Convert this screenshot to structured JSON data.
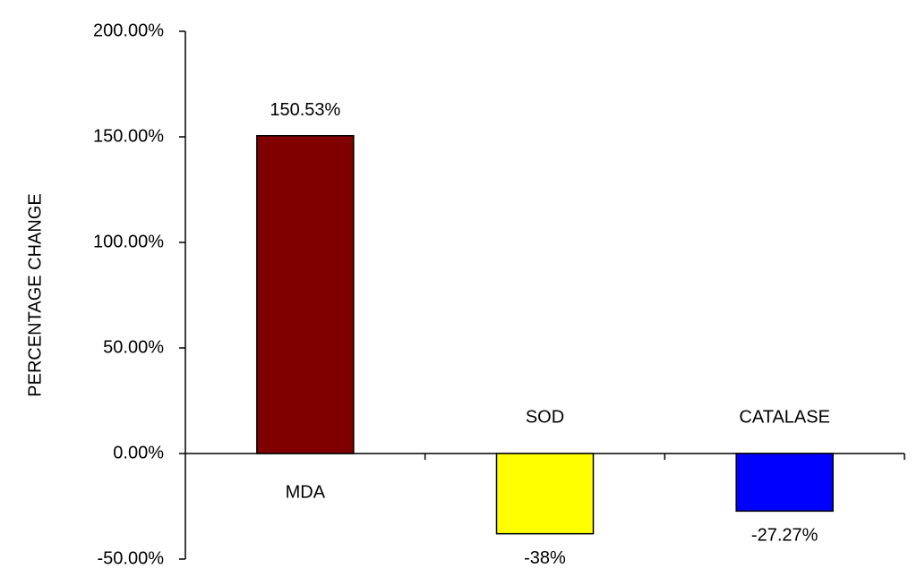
{
  "chart_data": {
    "type": "bar",
    "y_label": "PERCENTAGE CHANGE",
    "categories": [
      "MDA",
      "SOD",
      "CATALASE"
    ],
    "values": [
      150.53,
      -38,
      -27.27
    ],
    "value_labels": [
      "150.53%",
      "-38%",
      "-27.27%"
    ],
    "colors": [
      "#800000",
      "#ffff00",
      "#0000ff"
    ],
    "ylim": [
      -50,
      200
    ],
    "yticks": [
      {
        "value": -50,
        "label": "-50.00%"
      },
      {
        "value": 0,
        "label": "0.00%"
      },
      {
        "value": 50,
        "label": "50.00%"
      },
      {
        "value": 100,
        "label": "100.00%"
      },
      {
        "value": 150,
        "label": "150.00%"
      },
      {
        "value": 200,
        "label": "200.00%"
      }
    ],
    "grid": false
  }
}
